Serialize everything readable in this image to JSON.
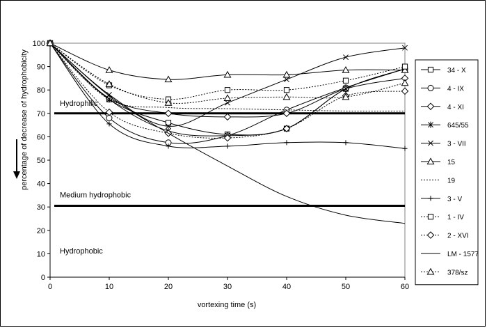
{
  "chart_data": {
    "type": "line",
    "title": "",
    "xlabel": "vortexing time (s)",
    "ylabel": "percentage of decrease of hydrophobicity",
    "x": [
      0,
      10,
      20,
      30,
      40,
      50,
      60
    ],
    "xlim": [
      0,
      60
    ],
    "ylim": [
      0,
      100
    ],
    "xticks": [
      "0",
      "10",
      "20",
      "30",
      "40",
      "50",
      "60"
    ],
    "yticks": [
      "0",
      "10",
      "20",
      "30",
      "40",
      "50",
      "60",
      "70",
      "80",
      "90",
      "100"
    ],
    "grid": false,
    "legend_position": "right",
    "thresholds": [
      {
        "value": 70,
        "label": "Hydrophilic"
      },
      {
        "value": 30.5,
        "label": "Medium hydrophobic"
      }
    ],
    "zone_labels": [
      "Hydrophilic",
      "Medium hydrophobic",
      "Hydrophobic"
    ],
    "series": [
      {
        "name": "34 - X",
        "values": [
          100,
          76,
          66,
          61,
          63.5,
          80.5,
          89
        ],
        "marker": "square",
        "dash": "solid"
      },
      {
        "name": "4 - IX",
        "values": [
          100,
          68,
          57.5,
          60.5,
          71.5,
          81,
          89
        ],
        "marker": "circle",
        "dash": "solid"
      },
      {
        "name": "4 - XI",
        "values": [
          100,
          76.5,
          70,
          68.5,
          70,
          80.5,
          85
        ],
        "marker": "diamond",
        "dash": "solid"
      },
      {
        "name": "645/55",
        "values": [
          100,
          76,
          62.5,
          60.5,
          63.5,
          80.5,
          89
        ],
        "marker": "asterisk",
        "dash": "solid"
      },
      {
        "name": "3 - VII",
        "values": [
          100,
          78,
          64.5,
          74.5,
          84.5,
          94,
          98
        ],
        "marker": "x",
        "dash": "solid"
      },
      {
        "name": "15",
        "values": [
          100,
          88.5,
          84.5,
          86.5,
          86.5,
          88.5,
          88.5
        ],
        "marker": "triangle",
        "dash": "solid"
      },
      {
        "name": "19",
        "values": [
          100,
          76,
          72.5,
          72,
          71.5,
          71,
          71
        ],
        "marker": "none",
        "dash": "dotted"
      },
      {
        "name": "3 - V",
        "values": [
          100,
          65.5,
          56,
          56,
          57.5,
          57.5,
          55
        ],
        "marker": "plus",
        "dash": "solid"
      },
      {
        "name": "1 - IV",
        "values": [
          100,
          82,
          76,
          80,
          80,
          84,
          90
        ],
        "marker": "square",
        "dash": "dotted"
      },
      {
        "name": "2 - XVI",
        "values": [
          100,
          70.5,
          61.5,
          59.5,
          63.5,
          77.5,
          79.5
        ],
        "marker": "diamond",
        "dash": "dotted"
      },
      {
        "name": "LM - 1577",
        "values": [
          100,
          77.5,
          61.5,
          47.5,
          34.5,
          26.5,
          23
        ],
        "marker": "none",
        "dash": "solid"
      },
      {
        "name": "378/sz",
        "values": [
          100,
          82.5,
          74.5,
          76.5,
          77,
          77,
          83
        ],
        "marker": "triangle",
        "dash": "dotted"
      }
    ]
  }
}
